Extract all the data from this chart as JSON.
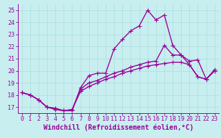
{
  "xlabel": "Windchill (Refroidissement éolien,°C)",
  "xlim": [
    -0.5,
    23.5
  ],
  "ylim": [
    16.5,
    25.5
  ],
  "xticks": [
    0,
    1,
    2,
    3,
    4,
    5,
    6,
    7,
    8,
    9,
    10,
    11,
    12,
    13,
    14,
    15,
    16,
    17,
    18,
    19,
    20,
    21,
    22,
    23
  ],
  "yticks": [
    17,
    18,
    19,
    20,
    21,
    22,
    23,
    24,
    25
  ],
  "bg_color": "#c8eef0",
  "line_color": "#990099",
  "line1_x": [
    0,
    1,
    2,
    3,
    4,
    5,
    6,
    7,
    8,
    9,
    10,
    11,
    12,
    13,
    14,
    15,
    16,
    17,
    18,
    19,
    20,
    21,
    22,
    23
  ],
  "line1_y": [
    18.2,
    18.0,
    17.6,
    17.0,
    16.8,
    16.7,
    16.7,
    18.6,
    19.6,
    19.8,
    19.8,
    21.8,
    22.6,
    23.3,
    23.7,
    25.0,
    24.2,
    24.6,
    22.1,
    21.3,
    20.8,
    20.9,
    19.3,
    20.1
  ],
  "line2_x": [
    0,
    1,
    2,
    3,
    4,
    5,
    6,
    7,
    8,
    9,
    10,
    11,
    12,
    13,
    14,
    15,
    16,
    17,
    18,
    19,
    20,
    21,
    22,
    23
  ],
  "line2_y": [
    18.2,
    18.0,
    17.6,
    17.0,
    16.9,
    16.7,
    16.8,
    18.5,
    19.0,
    19.2,
    19.5,
    19.8,
    20.0,
    20.3,
    20.5,
    20.7,
    20.8,
    22.1,
    21.3,
    21.3,
    20.5,
    19.5,
    19.3,
    20.0
  ],
  "line3_x": [
    0,
    1,
    2,
    3,
    4,
    5,
    6,
    7,
    8,
    9,
    10,
    11,
    12,
    13,
    14,
    15,
    16,
    17,
    18,
    19,
    20,
    21,
    22,
    23
  ],
  "line3_y": [
    18.2,
    18.0,
    17.6,
    17.0,
    16.9,
    16.7,
    16.8,
    18.3,
    18.7,
    19.0,
    19.3,
    19.5,
    19.8,
    20.0,
    20.2,
    20.4,
    20.5,
    20.6,
    20.7,
    20.7,
    20.5,
    19.5,
    19.3,
    20.0
  ],
  "marker": "+",
  "marker_size": 4,
  "linewidth": 1.0,
  "xlabel_fontsize": 7,
  "tick_fontsize": 6,
  "grid_color": "#aadddd"
}
